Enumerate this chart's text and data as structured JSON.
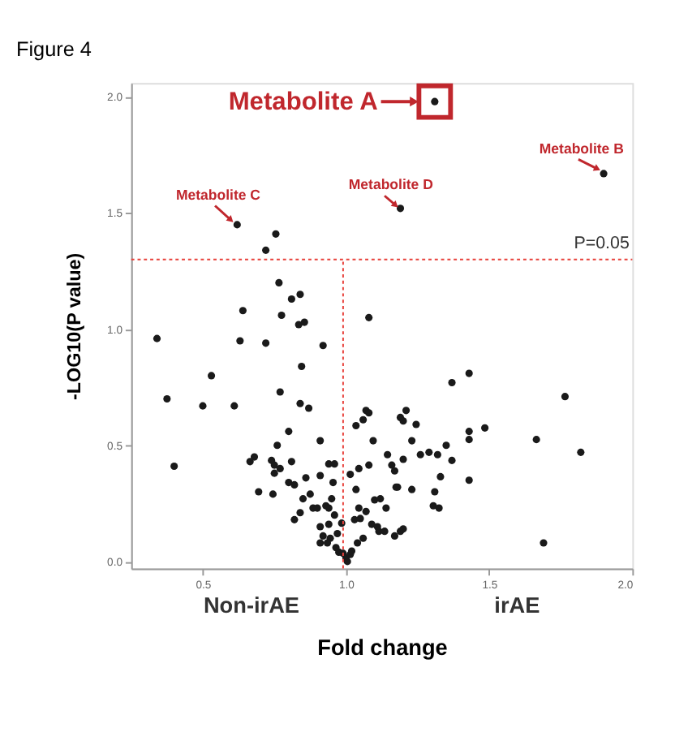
{
  "chart_data": {
    "type": "scatter",
    "title": "Figure 4",
    "xlabel": "Fold change",
    "ylabel": "-LOG10(P value)",
    "xlim": [
      0.25,
      2.0
    ],
    "ylim": [
      -0.03,
      2.06
    ],
    "xticks": [
      {
        "value": 0.5,
        "label": "0.5"
      },
      {
        "value": 1.0,
        "label": "1.0"
      },
      {
        "value": 1.5,
        "label": "1.5"
      },
      {
        "value": 2.0,
        "label": "2.0"
      }
    ],
    "yticks": [
      {
        "value": 0.0,
        "label": "0.0"
      },
      {
        "value": 0.5,
        "label": "0.5"
      },
      {
        "value": 1.0,
        "label": "1.0"
      },
      {
        "value": 1.5,
        "label": "1.5"
      },
      {
        "value": 2.0,
        "label": "2.0"
      }
    ],
    "grid": false,
    "marker": "circle",
    "series": [
      {
        "color": "#1a1a1a",
        "x": [
          1.31,
          1.9,
          1.19,
          0.62,
          0.755,
          0.72,
          0.766,
          0.81,
          0.84,
          0.64,
          0.775,
          0.835,
          0.855,
          1.08,
          0.34,
          0.63,
          0.72,
          0.92,
          0.53,
          0.845,
          0.375,
          0.5,
          0.61,
          0.77,
          0.84,
          0.87,
          0.8,
          0.91,
          0.76,
          0.4,
          0.665,
          0.68,
          0.74,
          0.75,
          0.75,
          0.77,
          0.81,
          0.94,
          0.96,
          0.91,
          0.86,
          0.955,
          0.8,
          0.82,
          0.695,
          0.745,
          0.875,
          0.85,
          0.95,
          0.885,
          0.9,
          0.93,
          0.94,
          0.84,
          0.96,
          0.82,
          0.91,
          0.94,
          0.985,
          0.92,
          0.945,
          0.97,
          0.91,
          0.935,
          0.965,
          0.975,
          0.99,
          1.0,
          1.015,
          1.02,
          1.005,
          1.035,
          1.06,
          1.07,
          1.08,
          1.095,
          1.145,
          1.16,
          1.175,
          1.08,
          1.045,
          1.015,
          1.035,
          1.045,
          1.1,
          1.12,
          1.07,
          1.14,
          1.03,
          1.05,
          1.09,
          1.11,
          1.115,
          1.135,
          1.17,
          1.06,
          1.04,
          1.19,
          1.19,
          1.21,
          1.2,
          1.245,
          1.23,
          1.2,
          1.26,
          1.29,
          1.32,
          1.35,
          1.37,
          1.37,
          1.43,
          1.43,
          1.43,
          1.485,
          1.33,
          1.31,
          1.305,
          1.325,
          1.43,
          1.23,
          1.18,
          1.17,
          1.2,
          1.665,
          1.765,
          1.82,
          1.69
        ],
        "values": [
          1.98,
          1.67,
          1.52,
          1.45,
          1.41,
          1.34,
          1.2,
          1.13,
          1.15,
          1.08,
          1.06,
          1.02,
          1.03,
          1.05,
          0.96,
          0.95,
          0.94,
          0.93,
          0.8,
          0.84,
          0.7,
          0.67,
          0.67,
          0.73,
          0.68,
          0.66,
          0.56,
          0.52,
          0.5,
          0.41,
          0.43,
          0.45,
          0.435,
          0.415,
          0.38,
          0.4,
          0.43,
          0.42,
          0.42,
          0.37,
          0.36,
          0.34,
          0.34,
          0.33,
          0.3,
          0.29,
          0.29,
          0.27,
          0.27,
          0.23,
          0.23,
          0.24,
          0.23,
          0.21,
          0.2,
          0.18,
          0.15,
          0.16,
          0.165,
          0.11,
          0.1,
          0.12,
          0.08,
          0.08,
          0.06,
          0.04,
          0.035,
          0.015,
          0.03,
          0.045,
          0.0,
          0.585,
          0.61,
          0.65,
          0.64,
          0.52,
          0.46,
          0.415,
          0.32,
          0.415,
          0.4,
          0.375,
          0.31,
          0.23,
          0.265,
          0.27,
          0.215,
          0.23,
          0.18,
          0.185,
          0.16,
          0.15,
          0.13,
          0.13,
          0.11,
          0.1,
          0.08,
          0.13,
          0.62,
          0.65,
          0.605,
          0.59,
          0.52,
          0.44,
          0.46,
          0.47,
          0.46,
          0.5,
          0.435,
          0.77,
          0.81,
          0.56,
          0.525,
          0.575,
          0.365,
          0.3,
          0.24,
          0.23,
          0.35,
          0.31,
          0.32,
          0.39,
          0.14,
          0.525,
          0.71,
          0.47,
          0.08
        ]
      }
    ],
    "ref_lines": [
      {
        "axis": "y",
        "value": 1.3,
        "color": "#e8403a",
        "line_style": "dotted"
      },
      {
        "axis": "x",
        "value": 0.99,
        "color": "#e8403a",
        "line_style": "dotted"
      }
    ],
    "annotations": [
      {
        "text": "Metabolite A",
        "x": 1.31,
        "y": 1.98
      },
      {
        "text": "Metabolite B",
        "x": 1.9,
        "y": 1.67
      },
      {
        "text": "Metabolite C",
        "x": 0.62,
        "y": 1.45
      },
      {
        "text": "Metabolite D",
        "x": 1.19,
        "y": 1.52
      },
      {
        "text": "P=0.05",
        "x": 1.99,
        "y": 1.3
      },
      "Non-irAE",
      "irAE"
    ]
  }
}
